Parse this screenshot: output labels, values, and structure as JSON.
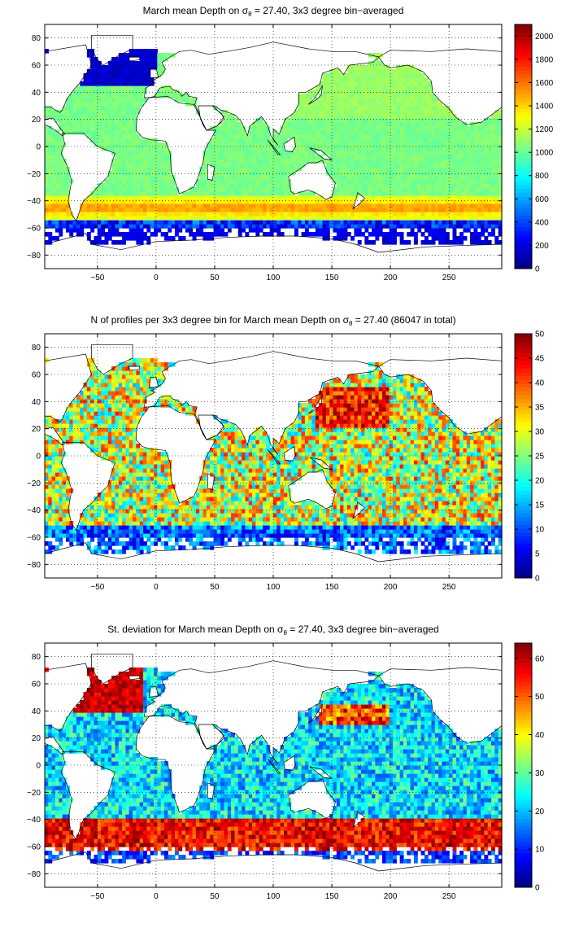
{
  "chart_data": [
    {
      "type": "heatmap",
      "title_parts": {
        "pre": "March mean Depth on ",
        "sym": "σ",
        "sub": "θ",
        "post": " = 27.40, 3x3 degree bin−averaged"
      },
      "xlim": [
        -95,
        295
      ],
      "ylim": [
        -90,
        90
      ],
      "xticks": [
        -50,
        0,
        50,
        100,
        150,
        200,
        250
      ],
      "yticks": [
        -80,
        -60,
        -40,
        -20,
        0,
        20,
        40,
        60,
        80
      ],
      "colorbar": {
        "min": 0,
        "max": 2100,
        "ticks": [
          0,
          200,
          400,
          600,
          800,
          1000,
          1200,
          1400,
          1600,
          1800,
          2000
        ]
      },
      "grid": true,
      "field": "depth"
    },
    {
      "type": "heatmap",
      "title_parts": {
        "pre": "N of profiles per 3x3 degree bin for March mean Depth on ",
        "sym": "σ",
        "sub": "θ",
        "post": " = 27.40 (86047 in total)"
      },
      "xlim": [
        -95,
        295
      ],
      "ylim": [
        -90,
        90
      ],
      "xticks": [
        -50,
        0,
        50,
        100,
        150,
        200,
        250
      ],
      "yticks": [
        -80,
        -60,
        -40,
        -20,
        0,
        20,
        40,
        60,
        80
      ],
      "colorbar": {
        "min": 0,
        "max": 50,
        "ticks": [
          0,
          5,
          10,
          15,
          20,
          25,
          30,
          35,
          40,
          45,
          50
        ]
      },
      "grid": true,
      "field": "count"
    },
    {
      "type": "heatmap",
      "title_parts": {
        "pre": "St. deviation for March mean Depth on ",
        "sym": "σ",
        "sub": "θ",
        "post": " = 27.40, 3x3 degree bin−averaged"
      },
      "xlim": [
        -95,
        295
      ],
      "ylim": [
        -90,
        90
      ],
      "xticks": [
        -50,
        0,
        50,
        100,
        150,
        200,
        250
      ],
      "yticks": [
        -80,
        -60,
        -40,
        -20,
        0,
        20,
        40,
        60,
        80
      ],
      "colorbar": {
        "min": 0,
        "max": 64,
        "ticks": [
          0,
          10,
          20,
          30,
          40,
          50,
          60
        ]
      },
      "grid": true,
      "field": "std"
    }
  ]
}
